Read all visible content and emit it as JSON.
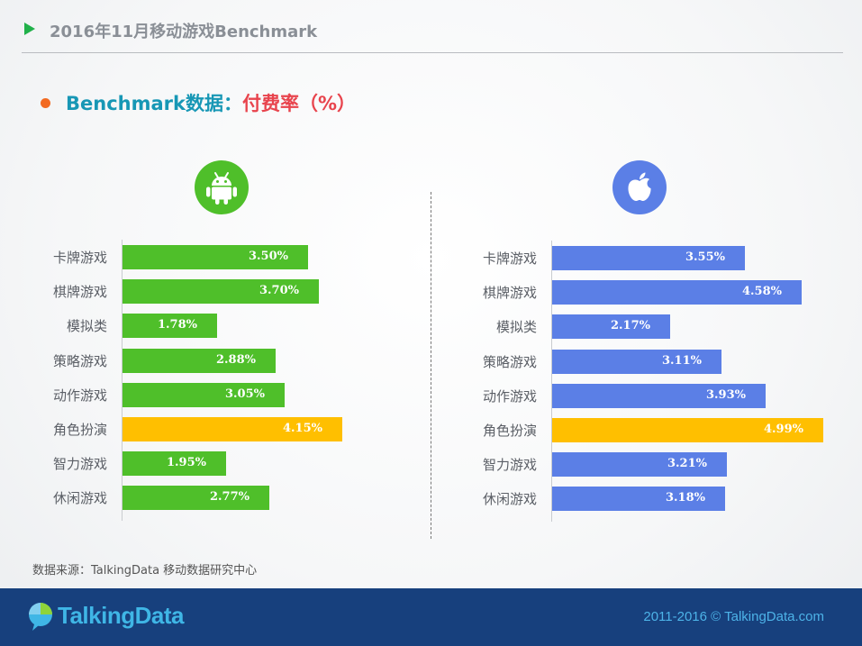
{
  "header": {
    "title": "2016年11月移动游戏Benchmark"
  },
  "subtitle": {
    "part1": "Benchmark数据：",
    "part2": "付费率（%）"
  },
  "colors": {
    "android": "#4fbf2a",
    "ios": "#5b7fe6",
    "highlight": "#ffbf00"
  },
  "chart_data": [
    {
      "type": "bar",
      "orientation": "horizontal",
      "platform": "android",
      "icon": "android-icon",
      "categories": [
        "卡牌游戏",
        "棋牌游戏",
        "模拟类",
        "策略游戏",
        "动作游戏",
        "角色扮演",
        "智力游戏",
        "休闲游戏"
      ],
      "values": [
        3.5,
        3.7,
        1.78,
        2.88,
        3.05,
        4.15,
        1.95,
        2.77
      ],
      "value_labels": [
        "3.50%",
        "3.70%",
        "1.78%",
        "2.88%",
        "3.05%",
        "4.15%",
        "1.95%",
        "2.77%"
      ],
      "highlight_index": 5,
      "xlim": [
        0,
        5
      ]
    },
    {
      "type": "bar",
      "orientation": "horizontal",
      "platform": "ios",
      "icon": "apple-icon",
      "categories": [
        "卡牌游戏",
        "棋牌游戏",
        "模拟类",
        "策略游戏",
        "动作游戏",
        "角色扮演",
        "智力游戏",
        "休闲游戏"
      ],
      "values": [
        3.55,
        4.58,
        2.17,
        3.11,
        3.93,
        4.99,
        3.21,
        3.18
      ],
      "value_labels": [
        "3.55%",
        "4.58%",
        "2.17%",
        "3.11%",
        "3.93%",
        "4.99%",
        "3.21%",
        "3.18%"
      ],
      "highlight_index": 5,
      "xlim": [
        0,
        5
      ]
    }
  ],
  "source": "数据来源：TalkingData 移动数据研究中心",
  "footer": {
    "logo_text": "TalkingData",
    "copyright": "2011-2016 © TalkingData.com"
  }
}
